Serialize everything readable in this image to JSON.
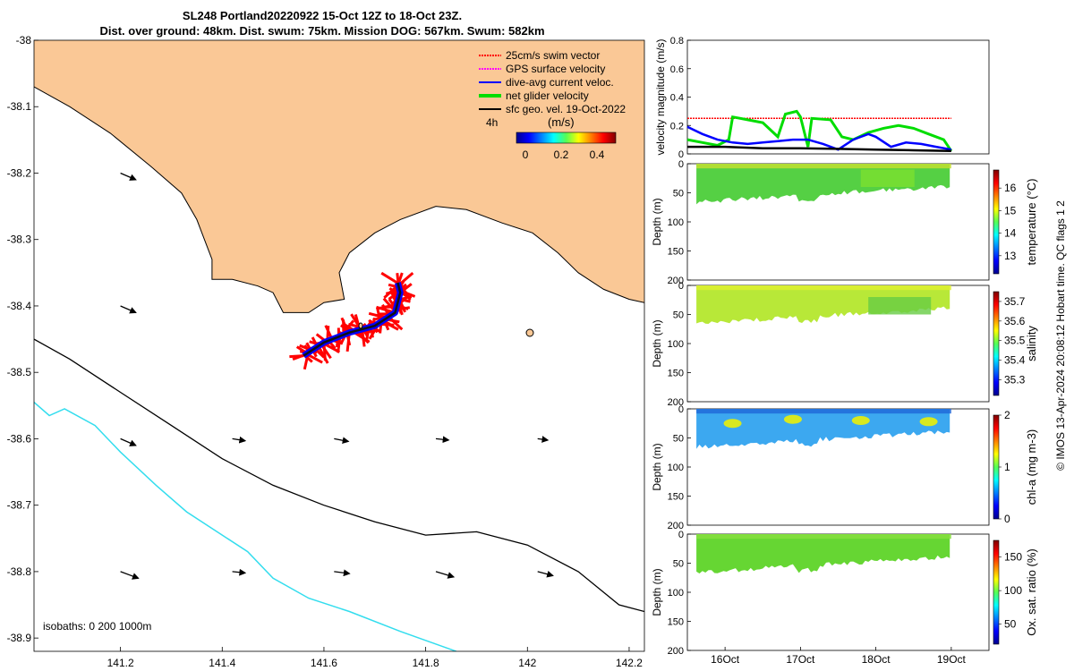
{
  "header": {
    "line1": "SL248 Portland20220922 15-Oct 12Z to 18-Oct 23Z.",
    "line2": "Dist. over ground: 48km. Dist. swum: 75km. Mission DOG: 567km. Swum: 582km"
  },
  "credit": "© IMOS 13-Apr-2024 20:08:12 Hobart time. QC flags 1  2",
  "colors": {
    "land": "#FAC896",
    "swim_vector": "#FF0000",
    "gps_velocity": "#FF00FF",
    "dive_avg_current": "#0000FF",
    "net_glider": "#00DD00",
    "sfc_geo": "#000000",
    "isobath_200": "#000000",
    "isobath_1000": "#33DDEE"
  },
  "chart_data": [
    {
      "type": "map",
      "title": "SL248 Portland20220922 15-Oct 12Z to 18-Oct 23Z.",
      "xlim": [
        141.03,
        142.23
      ],
      "ylim": [
        -38.92,
        -38.0
      ],
      "xticks": [
        "141.2",
        "141.4",
        "141.6",
        "141.8",
        "142",
        "142.2"
      ],
      "yticks": [
        "-38",
        "-38.1",
        "-38.2",
        "-38.3",
        "-38.4",
        "-38.5",
        "-38.6",
        "-38.7",
        "-38.8",
        "-38.9"
      ],
      "legend": {
        "items": [
          "25cm/s swim vector",
          "GPS surface velocity",
          "dive-avg current veloc.",
          "net glider velocity",
          "sfc geo. vel. 19-Oct-2022"
        ],
        "note": "4h",
        "colorbar_title": "(m/s)",
        "colorbar_ticks": [
          "0",
          "0.2",
          "0.4"
        ]
      },
      "isobaths_label": "isobaths: 0   200  1000m",
      "isobath_200": [
        [
          141.03,
          -38.45
        ],
        [
          141.1,
          -38.48
        ],
        [
          141.2,
          -38.53
        ],
        [
          141.3,
          -38.58
        ],
        [
          141.4,
          -38.63
        ],
        [
          141.5,
          -38.67
        ],
        [
          141.6,
          -38.7
        ],
        [
          141.7,
          -38.725
        ],
        [
          141.8,
          -38.745
        ],
        [
          141.9,
          -38.74
        ],
        [
          142.0,
          -38.76
        ],
        [
          142.1,
          -38.8
        ],
        [
          142.18,
          -38.85
        ],
        [
          142.23,
          -38.86
        ]
      ],
      "isobath_1000": [
        [
          141.03,
          -38.545
        ],
        [
          141.06,
          -38.565
        ],
        [
          141.09,
          -38.555
        ],
        [
          141.15,
          -38.58
        ],
        [
          141.2,
          -38.62
        ],
        [
          141.27,
          -38.67
        ],
        [
          141.33,
          -38.71
        ],
        [
          141.4,
          -38.745
        ],
        [
          141.45,
          -38.77
        ],
        [
          141.5,
          -38.81
        ],
        [
          141.57,
          -38.84
        ],
        [
          141.65,
          -38.86
        ],
        [
          141.75,
          -38.89
        ],
        [
          141.86,
          -38.92
        ]
      ],
      "coastline": [
        [
          141.03,
          -38.07
        ],
        [
          141.1,
          -38.1
        ],
        [
          141.18,
          -38.14
        ],
        [
          141.26,
          -38.19
        ],
        [
          141.32,
          -38.23
        ],
        [
          141.35,
          -38.27
        ],
        [
          141.37,
          -38.31
        ],
        [
          141.38,
          -38.33
        ],
        [
          141.38,
          -38.36
        ],
        [
          141.42,
          -38.36
        ],
        [
          141.47,
          -38.37
        ],
        [
          141.5,
          -38.38
        ],
        [
          141.52,
          -38.41
        ],
        [
          141.57,
          -38.41
        ],
        [
          141.6,
          -38.395
        ],
        [
          141.64,
          -38.39
        ],
        [
          141.63,
          -38.35
        ],
        [
          141.65,
          -38.32
        ],
        [
          141.7,
          -38.29
        ],
        [
          141.75,
          -38.27
        ],
        [
          141.82,
          -38.25
        ],
        [
          141.88,
          -38.255
        ],
        [
          141.95,
          -38.275
        ],
        [
          142.01,
          -38.29
        ],
        [
          142.06,
          -38.32
        ],
        [
          142.1,
          -38.35
        ],
        [
          142.15,
          -38.375
        ],
        [
          142.2,
          -38.39
        ],
        [
          142.23,
          -38.395
        ]
      ],
      "track": [
        [
          141.56,
          -38.475
        ],
        [
          141.6,
          -38.455
        ],
        [
          141.65,
          -38.44
        ],
        [
          141.7,
          -38.43
        ],
        [
          141.74,
          -38.41
        ],
        [
          141.75,
          -38.38
        ],
        [
          141.745,
          -38.365
        ]
      ],
      "geo_vectors": [
        [
          141.2,
          -38.2,
          0.03,
          -0.01
        ],
        [
          141.2,
          -38.4,
          0.03,
          -0.01
        ],
        [
          141.2,
          -38.6,
          0.03,
          -0.01
        ],
        [
          141.2,
          -38.8,
          0.035,
          -0.01
        ],
        [
          141.42,
          -38.6,
          0.025,
          -0.003
        ],
        [
          141.42,
          -38.8,
          0.025,
          -0.002
        ],
        [
          141.62,
          -38.6,
          0.028,
          -0.004
        ],
        [
          141.62,
          -38.8,
          0.03,
          -0.003
        ],
        [
          141.82,
          -38.6,
          0.025,
          -0.002
        ],
        [
          141.82,
          -38.8,
          0.035,
          -0.008
        ],
        [
          142.02,
          -38.6,
          0.02,
          -0.002
        ],
        [
          142.02,
          -38.8,
          0.03,
          -0.006
        ]
      ]
    },
    {
      "type": "line",
      "ylabel": "velocity magnitude (m/s)",
      "ylim": [
        0,
        0.8
      ],
      "yticks": [
        "0",
        "0.2",
        "0.4",
        "0.6",
        "0.8"
      ],
      "xlim": [
        15.5,
        19.5
      ],
      "series": [
        {
          "values": [
            [
              15.5,
              0.25
            ],
            [
              19.0,
              0.25
            ]
          ]
        },
        {
          "values": [
            [
              15.5,
              0.1
            ],
            [
              15.7,
              0.08
            ],
            [
              15.9,
              0.06
            ],
            [
              16.05,
              0.1
            ],
            [
              16.1,
              0.26
            ],
            [
              16.3,
              0.24
            ],
            [
              16.5,
              0.22
            ],
            [
              16.7,
              0.12
            ],
            [
              16.8,
              0.28
            ],
            [
              16.95,
              0.3
            ],
            [
              17.0,
              0.26
            ],
            [
              17.1,
              0.05
            ],
            [
              17.15,
              0.25
            ],
            [
              17.4,
              0.24
            ],
            [
              17.55,
              0.12
            ],
            [
              17.7,
              0.1
            ],
            [
              17.9,
              0.15
            ],
            [
              18.1,
              0.18
            ],
            [
              18.3,
              0.2
            ],
            [
              18.5,
              0.18
            ],
            [
              18.7,
              0.14
            ],
            [
              18.9,
              0.1
            ],
            [
              19.0,
              0.02
            ]
          ]
        },
        {
          "values": [
            [
              15.5,
              0.19
            ],
            [
              15.7,
              0.14
            ],
            [
              15.9,
              0.1
            ],
            [
              16.1,
              0.08
            ],
            [
              16.3,
              0.07
            ],
            [
              16.5,
              0.08
            ],
            [
              16.7,
              0.09
            ],
            [
              16.9,
              0.1
            ],
            [
              17.1,
              0.1
            ],
            [
              17.3,
              0.07
            ],
            [
              17.5,
              0.03
            ],
            [
              17.7,
              0.1
            ],
            [
              17.9,
              0.14
            ],
            [
              18.0,
              0.12
            ],
            [
              18.2,
              0.05
            ],
            [
              18.4,
              0.08
            ],
            [
              18.6,
              0.07
            ],
            [
              18.8,
              0.05
            ],
            [
              19.0,
              0.03
            ]
          ]
        },
        {
          "values": [
            [
              15.5,
              0.05
            ],
            [
              16.0,
              0.05
            ],
            [
              16.5,
              0.04
            ],
            [
              17.0,
              0.04
            ],
            [
              17.5,
              0.035
            ],
            [
              18.0,
              0.03
            ],
            [
              18.5,
              0.025
            ],
            [
              19.0,
              0.02
            ]
          ]
        }
      ]
    },
    {
      "type": "heatmap",
      "ylabel": "Depth (m)",
      "colorbar_label": "temperature (°C)",
      "ylim": [
        0,
        200
      ],
      "yticks": [
        "0",
        "50",
        "100",
        "150",
        "200"
      ],
      "colorbar_ticks": [
        "13",
        "14",
        "15",
        "16"
      ],
      "crange": [
        12.2,
        16.8
      ]
    },
    {
      "type": "heatmap",
      "ylabel": "Depth (m)",
      "colorbar_label": "salinity",
      "ylim": [
        0,
        200
      ],
      "yticks": [
        "0",
        "50",
        "100",
        "150",
        "200"
      ],
      "colorbar_ticks": [
        "35.3",
        "35.4",
        "35.5",
        "35.6",
        "35.7"
      ],
      "crange": [
        35.22,
        35.75
      ]
    },
    {
      "type": "heatmap",
      "ylabel": "Depth (m)",
      "colorbar_label": "chl-a (mg m-3)",
      "ylim": [
        0,
        200
      ],
      "yticks": [
        "0",
        "50",
        "100",
        "150",
        "200"
      ],
      "colorbar_ticks": [
        "0",
        "1",
        "2"
      ],
      "crange": [
        0,
        2
      ]
    },
    {
      "type": "heatmap",
      "ylabel": "Depth (m)",
      "colorbar_label": "Ox. sat. ratio (%)",
      "ylim": [
        0,
        200
      ],
      "yticks": [
        "0",
        "50",
        "100",
        "150",
        "200"
      ],
      "xticks": [
        "16Oct",
        "17Oct",
        "18Oct",
        "19Oct"
      ],
      "colorbar_ticks": [
        "50",
        "100",
        "150"
      ],
      "crange": [
        20,
        175
      ]
    }
  ]
}
